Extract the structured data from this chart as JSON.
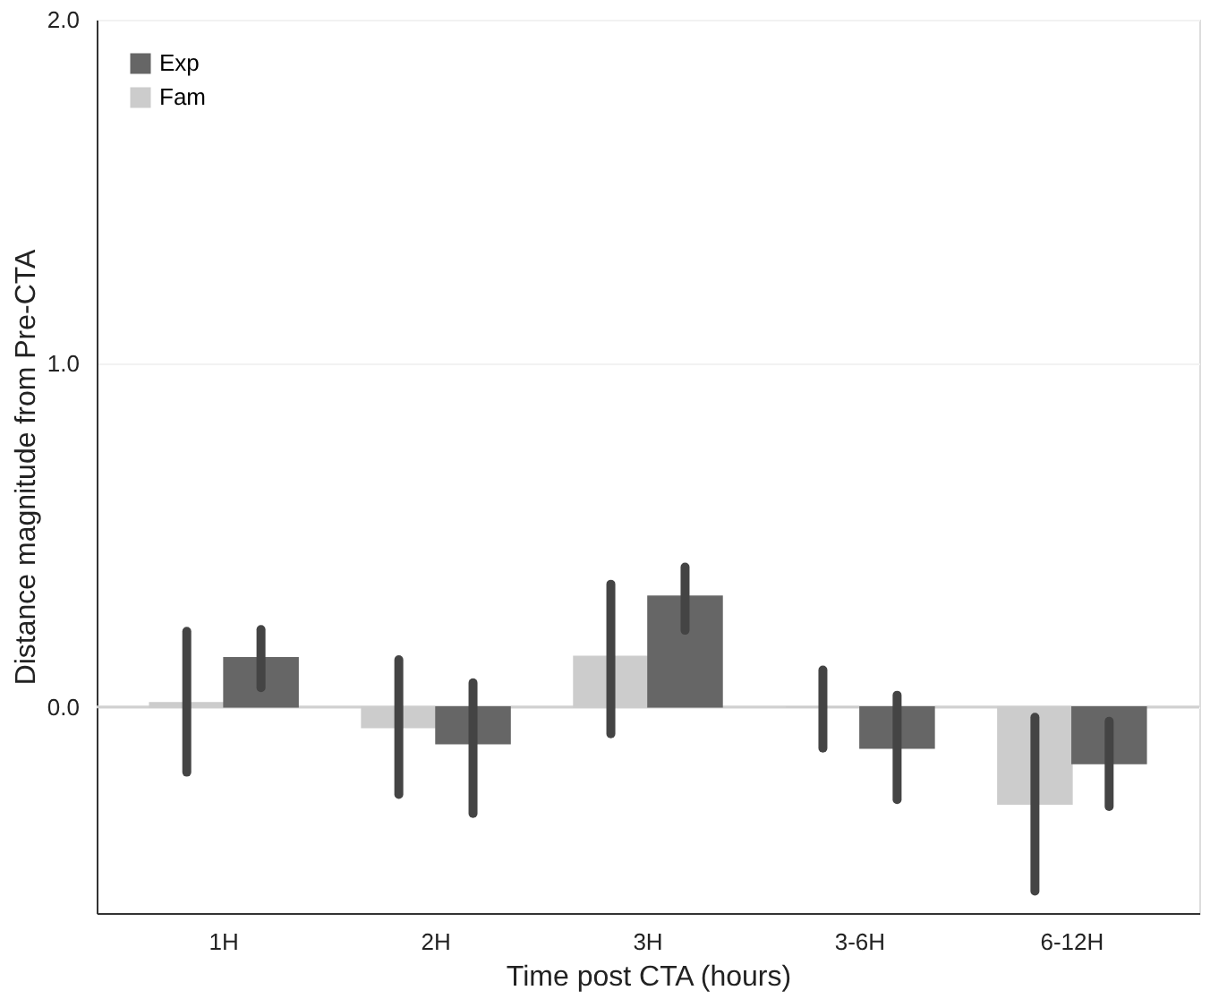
{
  "chart_data": {
    "type": "bar",
    "xlabel": "Time post CTA (hours)",
    "ylabel": "Distance magnitude from Pre-CTA",
    "categories": [
      "1H",
      "2H",
      "3H",
      "3-6H",
      "6-12H"
    ],
    "series": [
      {
        "name": "Fam",
        "color": "#cccccc",
        "values": [
          0.012,
          -0.06,
          0.147,
          0.0,
          -0.283
        ],
        "errors": [
          [
            -0.19,
            0.22
          ],
          [
            -0.255,
            0.137
          ],
          [
            -0.078,
            0.357
          ],
          [
            -0.12,
            0.107
          ],
          [
            -0.536,
            -0.03
          ]
        ]
      },
      {
        "name": "Exp",
        "color": "#666666",
        "values": [
          0.143,
          -0.107,
          0.322,
          -0.12,
          -0.165
        ],
        "errors": [
          [
            0.056,
            0.225
          ],
          [
            -0.31,
            0.07
          ],
          [
            0.223,
            0.407
          ],
          [
            -0.27,
            0.034
          ],
          [
            -0.29,
            -0.042
          ]
        ]
      }
    ],
    "ylim": [
      -0.6,
      2.0
    ],
    "yticks": [
      {
        "value": 0,
        "label": "0.0"
      },
      {
        "value": 1,
        "label": "1.0"
      },
      {
        "value": 2,
        "label": "2.0"
      }
    ],
    "ref_lines": [
      {
        "axis": "y",
        "value": 0,
        "color": "#d0d0d0"
      }
    ],
    "grid": "y",
    "legend": "top left"
  }
}
